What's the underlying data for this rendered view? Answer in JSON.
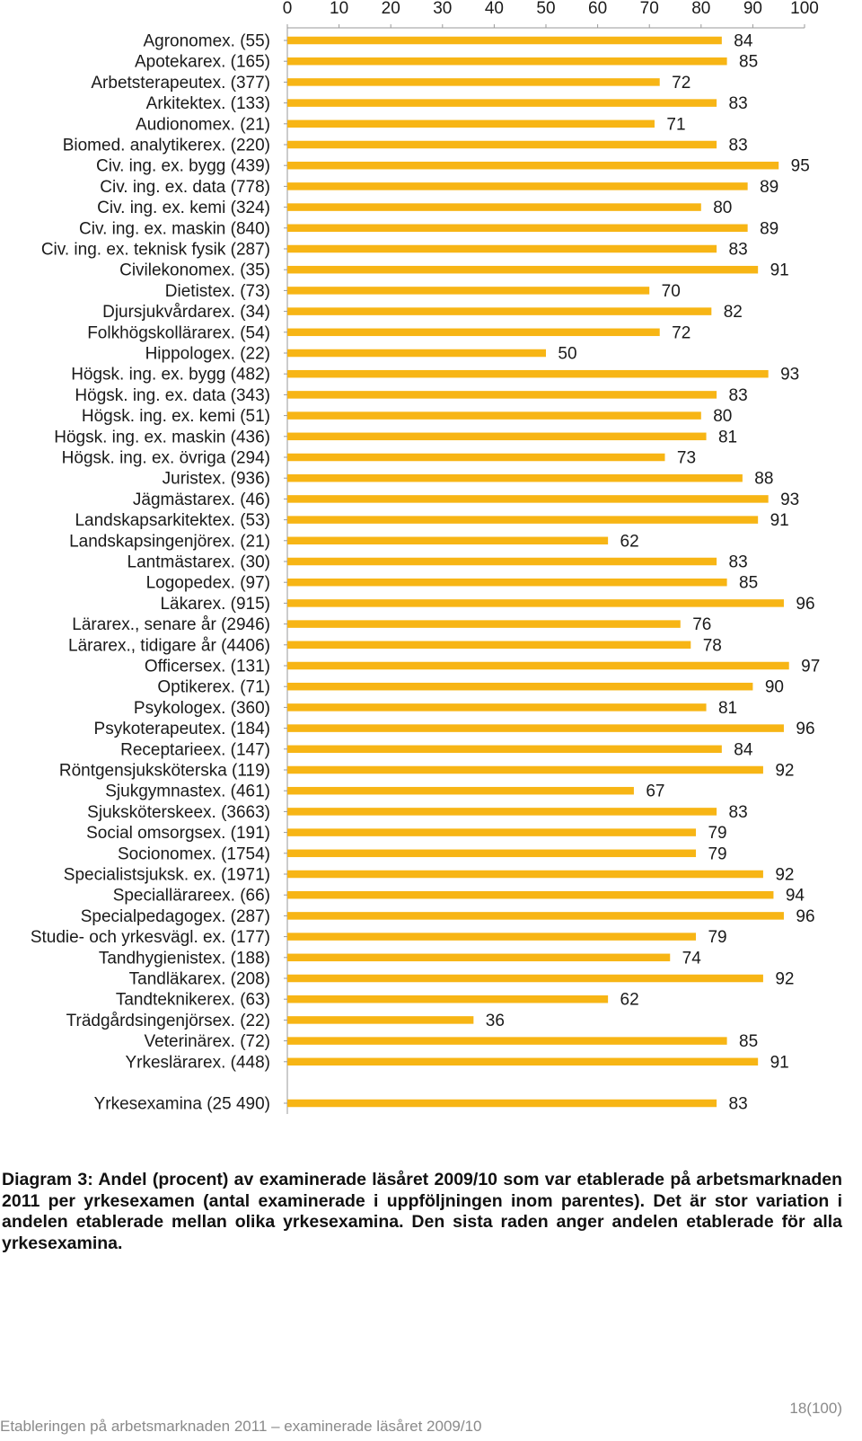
{
  "chart_data": {
    "type": "bar",
    "orientation": "horizontal",
    "xlim": [
      0,
      100
    ],
    "x_ticks": [
      "0",
      "10",
      "20",
      "30",
      "40",
      "50",
      "60",
      "70",
      "80",
      "90",
      "100"
    ],
    "bar_color": "#f7b515",
    "categories": [
      "Agronomex. (55)",
      "Apotekarex. (165)",
      "Arbetsterapeutex. (377)",
      "Arkitektex. (133)",
      "Audionomex. (21)",
      "Biomed. analytikerex. (220)",
      "Civ. ing. ex. bygg (439)",
      "Civ. ing. ex. data (778)",
      "Civ. ing. ex. kemi (324)",
      "Civ. ing. ex. maskin (840)",
      "Civ. ing. ex. teknisk fysik (287)",
      "Civilekonomex. (35)",
      "Dietistex. (73)",
      "Djursjukvårdarex. (34)",
      "Folkhögskollärarex. (54)",
      "Hippologex. (22)",
      "Högsk. ing. ex. bygg (482)",
      "Högsk. ing. ex. data (343)",
      "Högsk. ing. ex. kemi (51)",
      "Högsk. ing. ex. maskin (436)",
      "Högsk. ing. ex. övriga (294)",
      "Juristex. (936)",
      "Jägmästarex. (46)",
      "Landskapsarkitektex. (53)",
      "Landskapsingenjörex. (21)",
      "Lantmästarex. (30)",
      "Logopedex. (97)",
      "Läkarex. (915)",
      "Lärarex., senare år (2946)",
      "Lärarex., tidigare år (4406)",
      "Officersex. (131)",
      "Optikerex. (71)",
      "Psykologex. (360)",
      "Psykoterapeutex. (184)",
      "Receptarieex. (147)",
      "Röntgensjuksköterska (119)",
      "Sjukgymnastex. (461)",
      "Sjuksköterskeex. (3663)",
      "Social omsorgsex. (191)",
      "Socionomex. (1754)",
      "Specialistsjuksk. ex. (1971)",
      "Speciallärareex. (66)",
      "Specialpedagogex. (287)",
      "Studie- och yrkesvägl. ex. (177)",
      "Tandhygienistex. (188)",
      "Tandläkarex. (208)",
      "Tandteknikerex. (63)",
      "Trädgårdsingenjörsex. (22)",
      "Veterinärex. (72)",
      "Yrkeslärarex. (448)"
    ],
    "values": [
      84,
      85,
      72,
      83,
      71,
      83,
      95,
      89,
      80,
      89,
      83,
      91,
      70,
      82,
      72,
      50,
      93,
      83,
      80,
      81,
      73,
      88,
      93,
      91,
      62,
      83,
      85,
      96,
      76,
      78,
      97,
      90,
      81,
      96,
      84,
      92,
      67,
      83,
      79,
      79,
      92,
      94,
      96,
      79,
      74,
      92,
      62,
      36,
      85,
      91
    ],
    "total": {
      "label": "Yrkesexamina (25 490)",
      "value": 83
    }
  },
  "caption": "Diagram 3: Andel (procent) av examinerade läsåret 2009/10 som var etablerade på arbetsmarknaden 2011 per yrkesexamen (antal examinerade i uppföljningen inom parentes). Det är stor variation i andelen etablerade mellan olika yrkesexamina. Den sista raden anger andelen etablerade för alla yrkesexamina.",
  "page_number": "18(100)",
  "footer": "Etableringen på arbetsmarknaden 2011 – examinerade läsåret 2009/10"
}
